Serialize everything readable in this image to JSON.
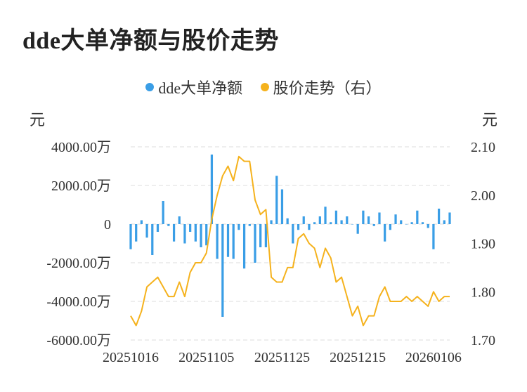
{
  "title": "dde大单净额与股价走势",
  "colors": {
    "bar": "#3a9ee6",
    "line": "#f5b21d",
    "grid": "#dddddd",
    "text": "#333333"
  },
  "chart_data": {
    "type": "bar+line",
    "legend": [
      {
        "name": "dde大单净额",
        "color": "#3a9ee6"
      },
      {
        "name": "股价走势（右）",
        "color": "#f5b21d"
      }
    ],
    "legend_position": "top",
    "y_left": {
      "unit": "元",
      "range": [
        -6000,
        4000
      ],
      "ticks": [
        -6000,
        -4000,
        -2000,
        0,
        2000,
        4000
      ],
      "tick_labels": [
        "-6000.00万",
        "-4000.00万",
        "-2000.00万",
        "0",
        "2000.00万",
        "4000.00万"
      ]
    },
    "y_right": {
      "unit": "元",
      "range": [
        1.7,
        2.1
      ],
      "ticks": [
        1.7,
        1.8,
        1.9,
        2.0,
        2.1
      ],
      "tick_labels": [
        "1.70",
        "1.80",
        "1.90",
        "2.00",
        "2.10"
      ]
    },
    "x_tick_labels": [
      {
        "index": 0,
        "label": "20251016"
      },
      {
        "index": 14,
        "label": "20251105"
      },
      {
        "index": 28,
        "label": "20251125"
      },
      {
        "index": 42,
        "label": "20251215"
      },
      {
        "index": 56,
        "label": "20260106"
      }
    ],
    "grid": true,
    "series": [
      {
        "name": "dde大单净额",
        "type": "bar",
        "axis": "left",
        "values": [
          -1300,
          -900,
          200,
          -700,
          -1600,
          -400,
          1200,
          -100,
          -900,
          400,
          -1000,
          -400,
          -900,
          -1200,
          -1100,
          3600,
          -1800,
          -4800,
          -1700,
          -1800,
          -300,
          -2300,
          -100,
          -2000,
          -1200,
          -1200,
          200,
          2500,
          1800,
          300,
          -1000,
          -300,
          400,
          -300,
          100,
          400,
          900,
          100,
          700,
          200,
          400,
          0,
          -500,
          700,
          400,
          -100,
          600,
          -900,
          -300,
          500,
          200,
          0,
          100,
          700,
          100,
          -200,
          -1300,
          800,
          200,
          600
        ]
      },
      {
        "name": "股价走势（右）",
        "type": "line",
        "axis": "right",
        "values": [
          1.75,
          1.73,
          1.76,
          1.81,
          1.82,
          1.83,
          1.81,
          1.79,
          1.79,
          1.82,
          1.79,
          1.84,
          1.86,
          1.86,
          1.88,
          1.95,
          2.0,
          2.04,
          2.06,
          2.03,
          2.08,
          2.07,
          2.07,
          1.99,
          1.96,
          1.97,
          1.83,
          1.82,
          1.82,
          1.85,
          1.85,
          1.91,
          1.92,
          1.9,
          1.89,
          1.85,
          1.89,
          1.87,
          1.82,
          1.83,
          1.79,
          1.75,
          1.77,
          1.73,
          1.75,
          1.75,
          1.79,
          1.81,
          1.78,
          1.78,
          1.78,
          1.79,
          1.78,
          1.79,
          1.78,
          1.77,
          1.8,
          1.78,
          1.79,
          1.79
        ]
      }
    ]
  }
}
